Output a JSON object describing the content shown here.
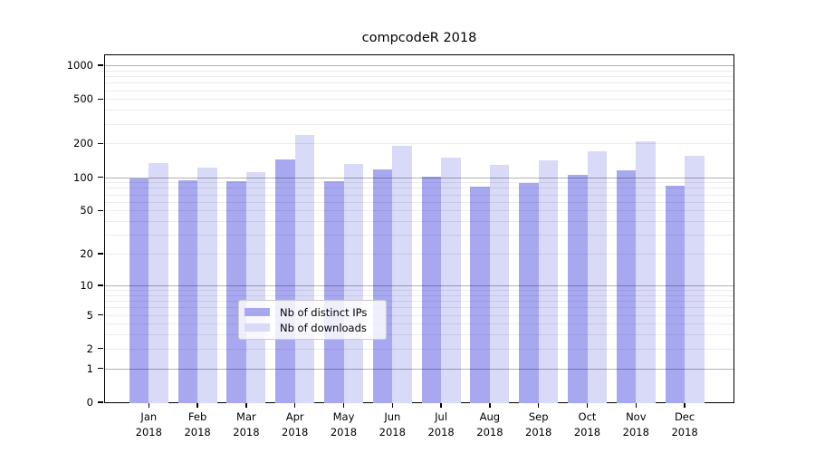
{
  "chart_data": {
    "type": "bar",
    "title": "compcodeR 2018",
    "categories": [
      "Jan",
      "Feb",
      "Mar",
      "Apr",
      "May",
      "Jun",
      "Jul",
      "Aug",
      "Sep",
      "Oct",
      "Nov",
      "Dec"
    ],
    "year": "2018",
    "series": [
      {
        "name": "Nb of distinct IPs",
        "color": "#a8a8f1",
        "values": [
          100,
          95,
          94,
          148,
          93,
          119,
          103,
          83,
          91,
          106,
          117,
          86
        ]
      },
      {
        "name": "Nb of downloads",
        "color": "#d9d9f8",
        "values": [
          136,
          125,
          114,
          242,
          135,
          195,
          152,
          132,
          145,
          175,
          214,
          157
        ]
      }
    ],
    "xlabel": "",
    "ylabel": "",
    "yticks": [
      0,
      1,
      2,
      5,
      10,
      20,
      50,
      100,
      200,
      500,
      1000
    ],
    "major_gridlines": [
      1,
      10,
      100,
      1000
    ],
    "minor_gridlines": [
      3,
      4,
      6,
      7,
      8,
      9,
      30,
      40,
      60,
      70,
      80,
      90,
      300,
      400,
      600,
      700,
      800,
      900
    ],
    "scale": "log1p",
    "ylim": [
      0,
      1250
    ],
    "grid": "on",
    "legend_position": "lower center"
  }
}
